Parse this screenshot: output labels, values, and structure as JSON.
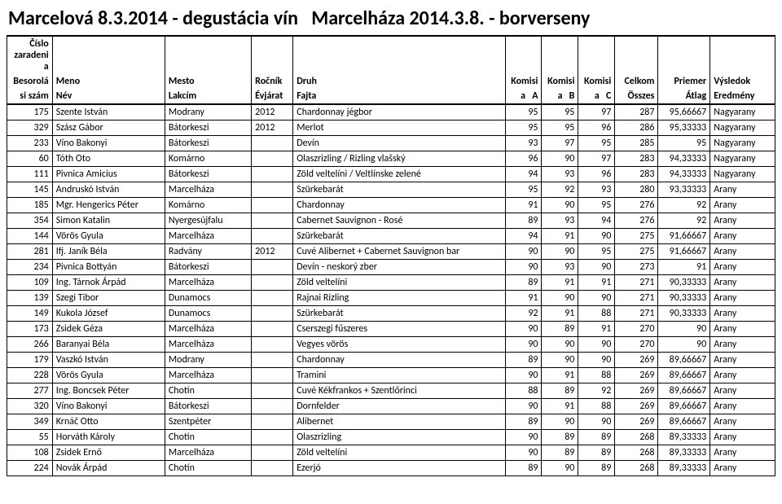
{
  "title": "Marcelová 8.3.2014 - degustácia vín   Marcelháza 2014.3.8. - borverseny",
  "table": {
    "headers": {
      "top": [
        "Číslo zaradeni a",
        "",
        "",
        "",
        "",
        "",
        "",
        "",
        "",
        "",
        ""
      ],
      "mid": [
        "Besorolá",
        "Meno",
        "Mesto",
        "Ročník",
        "Druh",
        "Komisi",
        "Komisi",
        "Komisi",
        "Celkom",
        "Priemer",
        "Výsledok"
      ],
      "bottom": [
        "si szám",
        "Név",
        "Lakcím",
        "Évjárat",
        "Fajta",
        "a   A",
        "a   B",
        "a   C",
        "Összes",
        "Átlag",
        "Eredmény"
      ]
    },
    "numeric_cols": [
      0,
      5,
      6,
      7,
      8,
      9
    ],
    "columns": [
      "num",
      "name",
      "place",
      "year",
      "kind",
      "a",
      "b",
      "c",
      "sum",
      "avg",
      "res"
    ],
    "rows": [
      [
        "175",
        "Szente István",
        "Modrany",
        "2012",
        "Chardonnay jégbor",
        "95",
        "95",
        "97",
        "287",
        "95,66667",
        "Nagyarany"
      ],
      [
        "329",
        "Szász Gábor",
        "Bátorkeszi",
        "2012",
        "Merlot",
        "95",
        "95",
        "96",
        "286",
        "95,33333",
        "Nagyarany"
      ],
      [
        "233",
        "Víno Bakonyi",
        "Bátorkeszi",
        "",
        "Devín",
        "93",
        "97",
        "95",
        "285",
        "95",
        "Nagyarany"
      ],
      [
        "60",
        "Tóth Oto",
        "Komárno",
        "",
        "Olaszrizling / Rizling vlašský",
        "96",
        "90",
        "97",
        "283",
        "94,33333",
        "Nagyarany"
      ],
      [
        "111",
        "Pivnica Amicius",
        "Bátorkeszi",
        "",
        "Zöld veltelíni / Veltlínske zelené",
        "94",
        "93",
        "96",
        "283",
        "94,33333",
        "Nagyarany"
      ],
      [
        "145",
        "Andruskó István",
        "Marcelháza",
        "",
        "Szürkebarát",
        "95",
        "92",
        "93",
        "280",
        "93,33333",
        "Arany"
      ],
      [
        "185",
        "Mgr. Hengerics Péter",
        "Komárno",
        "",
        "Chardonnay",
        "91",
        "90",
        "95",
        "276",
        "92",
        "Arany"
      ],
      [
        "354",
        "Simon Katalin",
        "Nyergesújfalu",
        "",
        "Cabernet Sauvignon - Rosé",
        "89",
        "93",
        "94",
        "276",
        "92",
        "Arany"
      ],
      [
        "144",
        "Vörös Gyula",
        "Marcelháza",
        "",
        "Szürkebarát",
        "94",
        "91",
        "90",
        "275",
        "91,66667",
        "Arany"
      ],
      [
        "281",
        "Ifj. Janík Béla",
        "Radvány",
        "2012",
        "Cuvé Alibernet + Cabernet Sauvignon bar",
        "90",
        "90",
        "95",
        "275",
        "91,66667",
        "Arany"
      ],
      [
        "234",
        "Pivnica Bottyán",
        "Bátorkeszi",
        "",
        "Devín - neskorý zber",
        "90",
        "93",
        "90",
        "273",
        "91",
        "Arany"
      ],
      [
        "109",
        "Ing. Tárnok Árpád",
        "Marcelháza",
        "",
        "Zöld veltelíni",
        "89",
        "91",
        "91",
        "271",
        "90,33333",
        "Arany"
      ],
      [
        "139",
        "Szegi Tibor",
        "Dunamocs",
        "",
        "Rajnai Rizling",
        "91",
        "90",
        "90",
        "271",
        "90,33333",
        "Arany"
      ],
      [
        "149",
        "Kukola József",
        "Dunamocs",
        "",
        "Szürkebarát",
        "92",
        "91",
        "88",
        "271",
        "90,33333",
        "Arany"
      ],
      [
        "173",
        "Zsidek Géza",
        "Marcelháza",
        "",
        "Cserszegi fűszeres",
        "90",
        "89",
        "91",
        "270",
        "90",
        "Arany"
      ],
      [
        "266",
        "Baranyai Béla",
        "Marcelháza",
        "",
        "Vegyes vörös",
        "90",
        "90",
        "90",
        "270",
        "90",
        "Arany"
      ],
      [
        "179",
        "Vaszkó István",
        "Modrany",
        "",
        "Chardonnay",
        "89",
        "90",
        "90",
        "269",
        "89,66667",
        "Arany"
      ],
      [
        "228",
        "Vörös Gyula",
        "Marcelháza",
        "",
        "Tramini",
        "90",
        "91",
        "88",
        "269",
        "89,66667",
        "Arany"
      ],
      [
        "277",
        "Ing. Boncsek Péter",
        "Chotín",
        "",
        "Cuvé Kékfrankos + Szentlőrinci",
        "88",
        "89",
        "92",
        "269",
        "89,66667",
        "Arany"
      ],
      [
        "320",
        "Víno Bakonyi",
        "Bátorkeszi",
        "",
        "Dornfelder",
        "90",
        "91",
        "88",
        "269",
        "89,66667",
        "Arany"
      ],
      [
        "349",
        "Krnáč Otto",
        "Szentpéter",
        "",
        "Alibernet",
        "89",
        "90",
        "90",
        "269",
        "89,66667",
        "Arany"
      ],
      [
        "55",
        "Horváth Károly",
        "Chotín",
        "",
        "Olaszrizling",
        "90",
        "89",
        "89",
        "268",
        "89,33333",
        "Arany"
      ],
      [
        "108",
        "Zsidek Ernő",
        "Marcelháza",
        "",
        "Zöld veltelíni",
        "90",
        "89",
        "89",
        "268",
        "89,33333",
        "Arany"
      ],
      [
        "224",
        "Novák Árpád",
        "Chotín",
        "",
        "Ezerjó",
        "89",
        "90",
        "89",
        "268",
        "89,33333",
        "Arany"
      ]
    ]
  }
}
